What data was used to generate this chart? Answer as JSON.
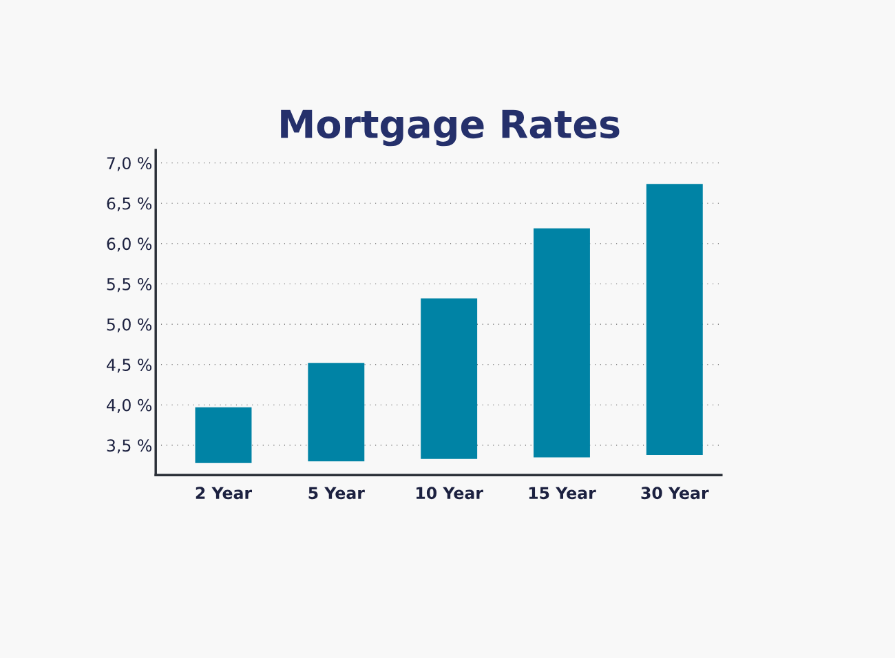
{
  "chart_data": {
    "type": "bar",
    "title": "Mortgage Rates",
    "categories": [
      "2 Year",
      "5 Year",
      "10 Year",
      "15 Year",
      "30 Year"
    ],
    "base": [
      3.28,
      3.3,
      3.33,
      3.35,
      3.38
    ],
    "values": [
      0.69,
      1.22,
      1.99,
      2.84,
      3.36
    ],
    "color": "#0083a5",
    "ylim": [
      3.13,
      7.16
    ],
    "yticks": [
      {
        "value": 3.5,
        "label": "3,5 %"
      },
      {
        "value": 4.0,
        "label": "4,0 %"
      },
      {
        "value": 4.5,
        "label": "4,5 %"
      },
      {
        "value": 5.0,
        "label": "5,0 %"
      },
      {
        "value": 5.5,
        "label": "5,5 %"
      },
      {
        "value": 6.0,
        "label": "6,0 %"
      },
      {
        "value": 6.5,
        "label": "6,5 %"
      },
      {
        "value": 7.0,
        "label": "7,0 %"
      }
    ],
    "grid": "y",
    "line_style": "dotted",
    "legend": false
  }
}
